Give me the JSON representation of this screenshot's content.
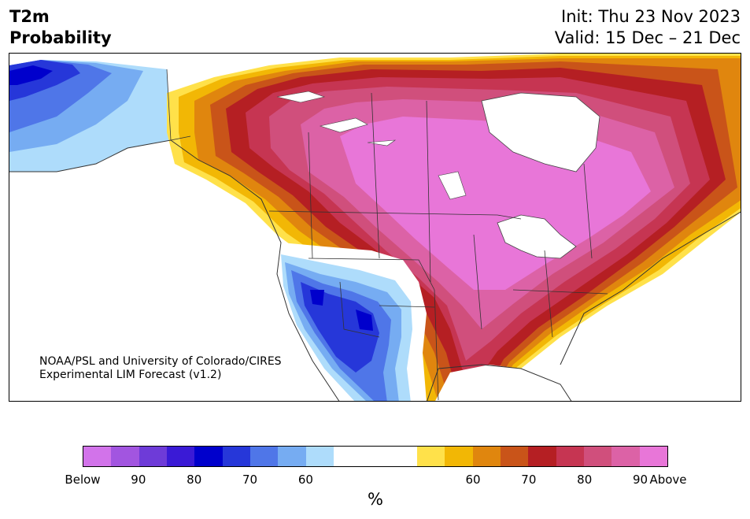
{
  "header": {
    "title_line1": "T2m",
    "title_line2": "Probability",
    "init": "Init: Thu 23 Nov 2023",
    "valid": "Valid: 15 Dec – 21 Dec"
  },
  "map": {
    "credit_line1": "NOAA/PSL and University of Colorado/CIRES",
    "credit_line2": "Experimental LIM Forecast (v1.2)"
  },
  "legend": {
    "unit": "%",
    "ticks": [
      "Below",
      "90",
      "80",
      "70",
      "60",
      "60",
      "70",
      "80",
      "90",
      "Above"
    ],
    "colors_below": [
      "#d273ea",
      "#a255e0",
      "#6e3bd8",
      "#3a1ad6",
      "#0000cc",
      "#2637d9",
      "#4f76e8",
      "#76acf2",
      "#aedcfb"
    ],
    "color_neutral": "#ffffff",
    "colors_above": [
      "#ffe14a",
      "#f2b705",
      "#e0860e",
      "#c95419",
      "#b51f23",
      "#c63552",
      "#d04f7c",
      "#dc62a6",
      "#e876d8"
    ]
  }
}
